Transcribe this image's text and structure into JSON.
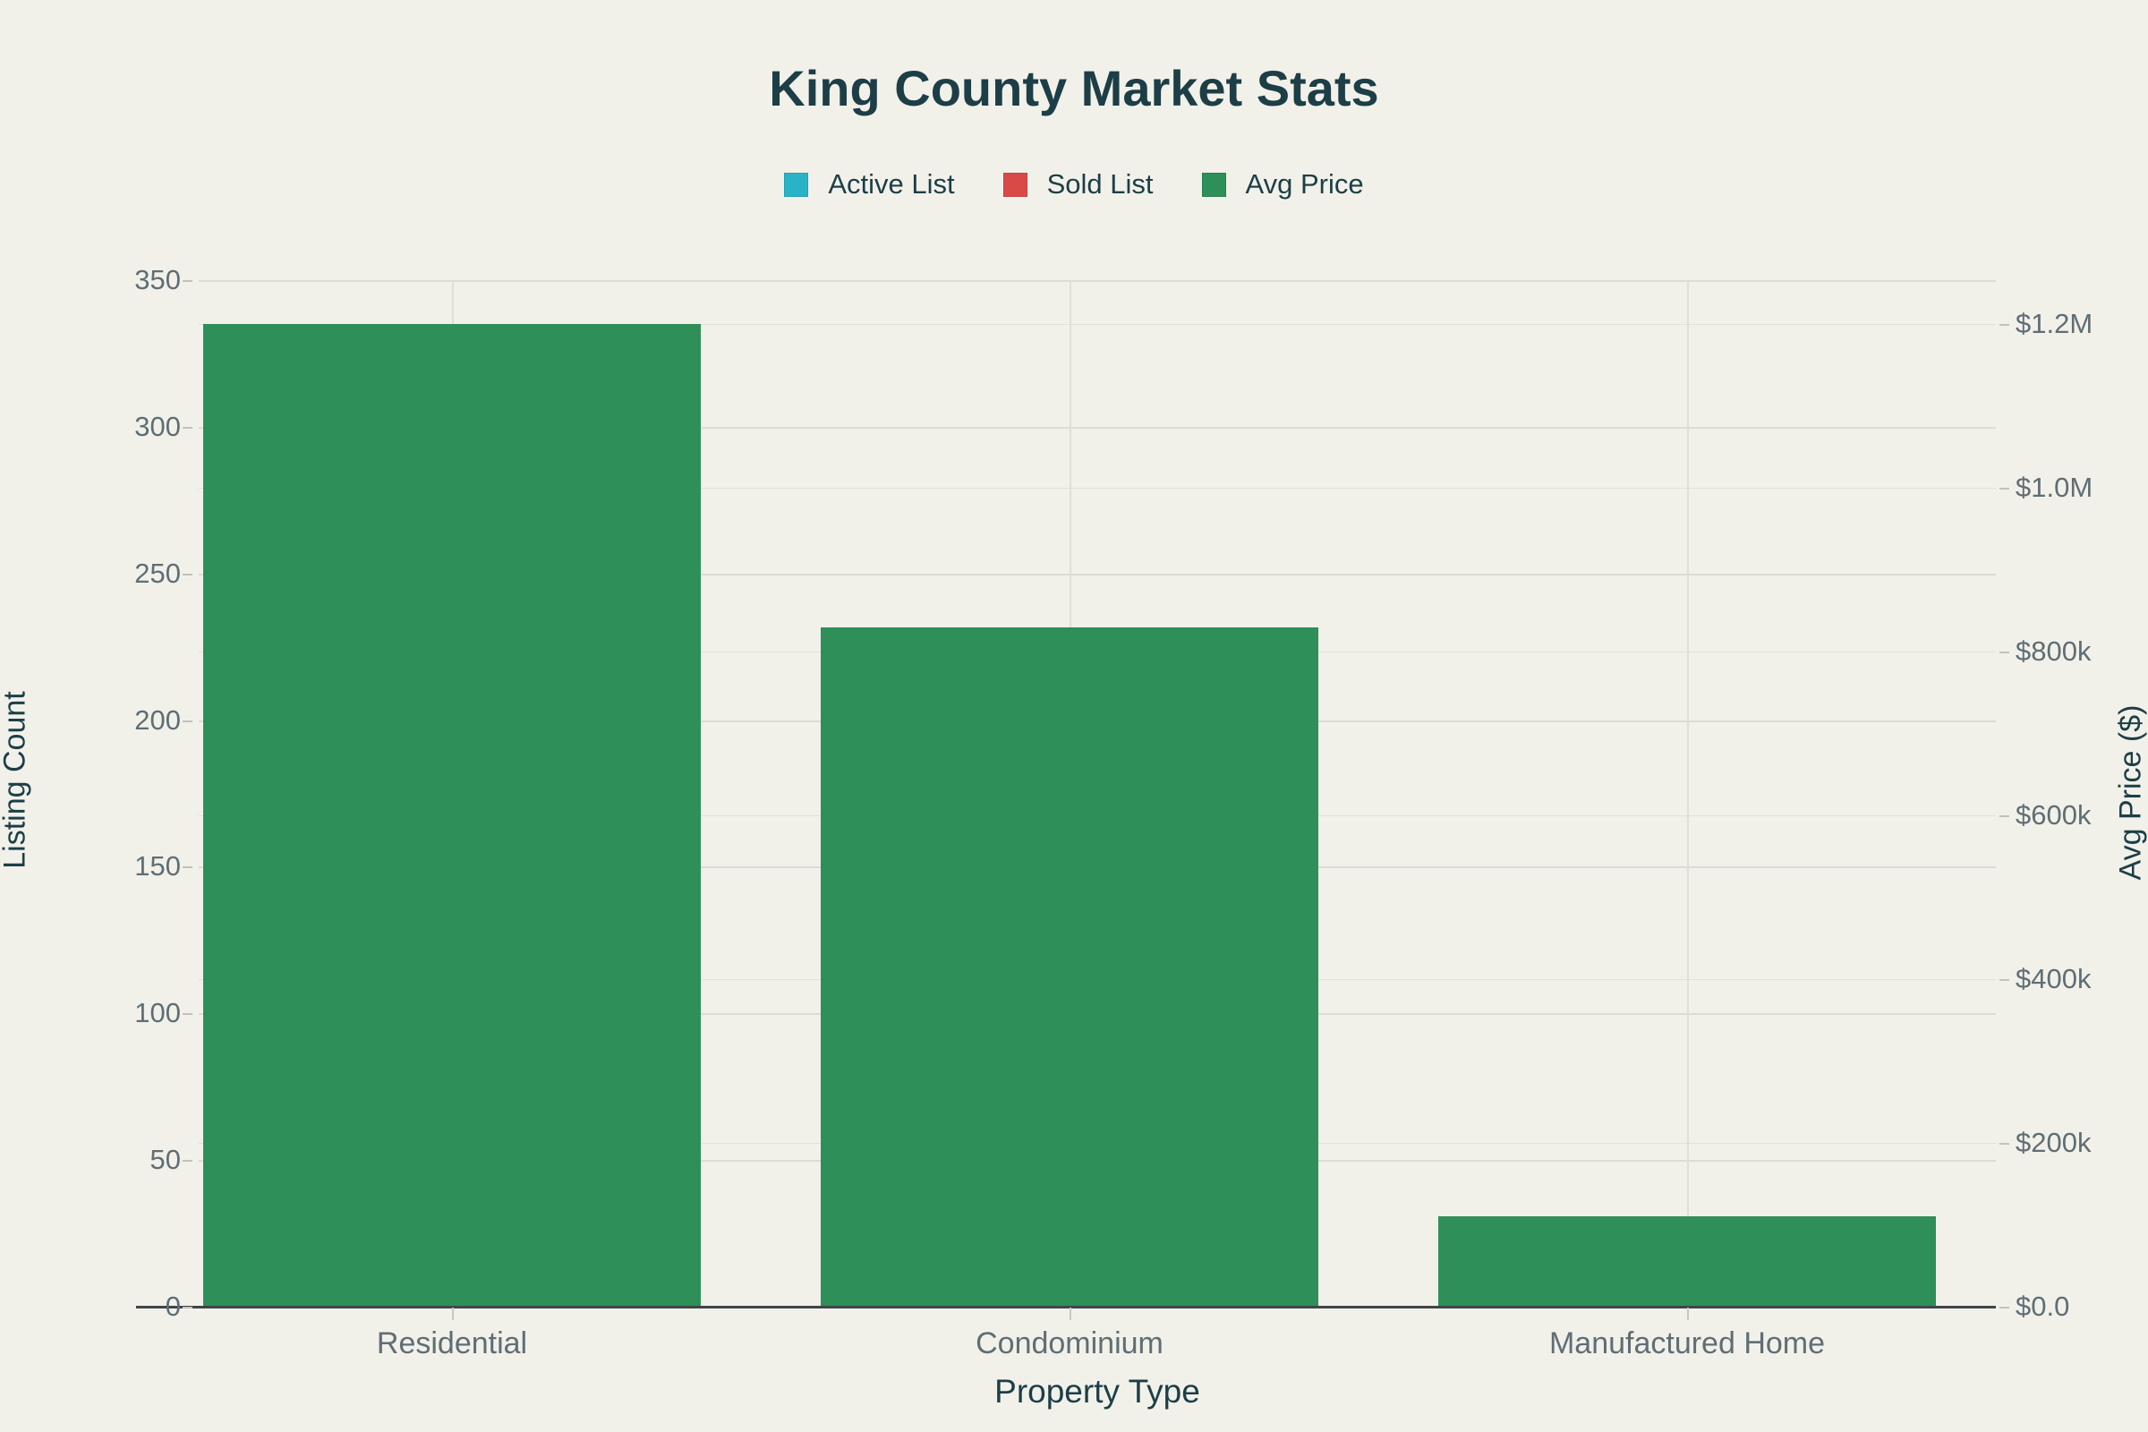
{
  "page": {
    "background_color": "#f1f1ea",
    "text_dark_color": "#1d3e46",
    "tick_text_color": "#5f6e74"
  },
  "header": {
    "title": "King County Market Stats"
  },
  "legend": {
    "items": [
      {
        "label": "Active List",
        "color": "#29b3c7"
      },
      {
        "label": "Sold List",
        "color": "#d94a47"
      },
      {
        "label": "Avg Price",
        "color": "#2e8f58"
      }
    ]
  },
  "chart_data": {
    "type": "bar",
    "title": "King County Market Stats",
    "categories": [
      "Residential",
      "Condominium",
      "Manufactured Home"
    ],
    "series": [
      {
        "name": "Active List",
        "color": "#29b3c7",
        "axis": "left",
        "values": [
          null,
          null,
          null
        ],
        "bars_visible": false
      },
      {
        "name": "Sold List",
        "color": "#d94a47",
        "axis": "left",
        "values": [
          null,
          null,
          null
        ],
        "bars_visible": false
      },
      {
        "name": "Avg Price",
        "color": "#2e8f58",
        "axis": "right",
        "values": [
          1200000,
          830000,
          110000
        ],
        "bars_visible": true
      }
    ],
    "xlabel": "Property Type",
    "ylabel_left": "Listing Count",
    "ylabel_right": "Avg Price ($)",
    "y_left_ticks": [
      "0",
      "50",
      "100",
      "150",
      "200",
      "250",
      "300",
      "350"
    ],
    "y_left_tick_values": [
      0,
      50,
      100,
      150,
      200,
      250,
      300,
      350
    ],
    "y_left_range": [
      0,
      350
    ],
    "y_right_ticks": [
      "$0.0",
      "$200k",
      "$400k",
      "$600k",
      "$800k",
      "$1.0M",
      "$1.2M"
    ],
    "y_right_tick_values": [
      0,
      200000,
      400000,
      600000,
      800000,
      1000000,
      1200000
    ],
    "y_right_range": [
      0,
      1253000
    ],
    "grid": true,
    "legend_position": "top",
    "avg_price_left_axis_equivalents": [
      338,
      234,
      31
    ]
  }
}
